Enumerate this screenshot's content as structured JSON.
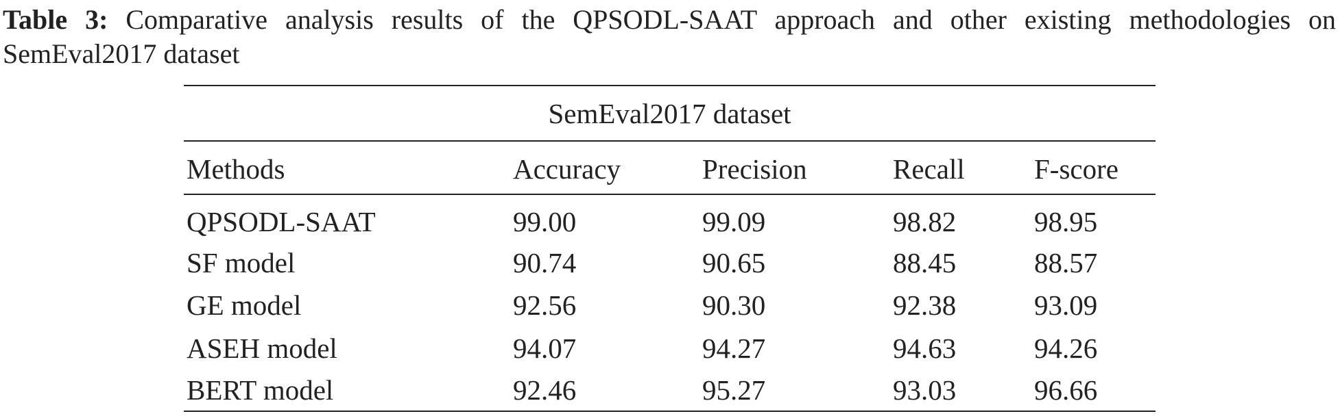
{
  "caption": {
    "label": "Table 3:",
    "text": "Comparative analysis results of the QPSODL-SAAT approach and other existing methodologies on SemEval2017 dataset"
  },
  "table": {
    "group_header": "SemEval2017 dataset",
    "columns": [
      "Methods",
      "Accuracy",
      "Precision",
      "Recall",
      "F-score"
    ],
    "rows": [
      [
        "QPSODL-SAAT",
        "99.00",
        "99.09",
        "98.82",
        "98.95"
      ],
      [
        "SF model",
        "90.74",
        "90.65",
        "88.45",
        "88.57"
      ],
      [
        "GE model",
        "92.56",
        "90.30",
        "92.38",
        "93.09"
      ],
      [
        "ASEH model",
        "94.07",
        "94.27",
        "94.63",
        "94.26"
      ],
      [
        "BERT model",
        "92.46",
        "95.27",
        "93.03",
        "96.66"
      ]
    ]
  }
}
